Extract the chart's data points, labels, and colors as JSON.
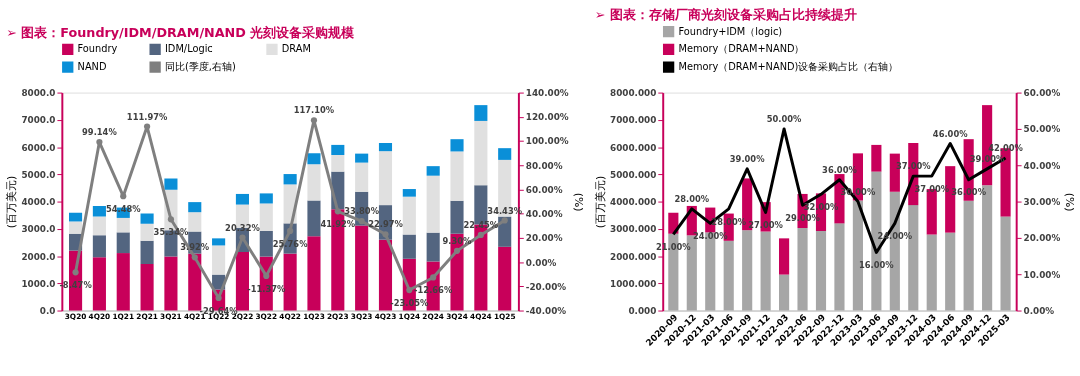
{
  "chart_data": [
    {
      "type": "bar",
      "title": "➢ 图表：Foundry/IDM/DRAM/NAND 光刻设备采购规模",
      "ylabel": "(百万美元)",
      "y2label": "(%)",
      "categories": [
        "3Q20",
        "4Q20",
        "1Q21",
        "2Q21",
        "3Q21",
        "4Q21",
        "1Q22",
        "2Q22",
        "3Q22",
        "4Q22",
        "1Q23",
        "2Q23",
        "3Q23",
        "4Q23",
        "1Q24",
        "2Q24",
        "3Q24",
        "4Q24",
        "1Q25"
      ],
      "stacked": true,
      "legend": "top",
      "grid": false,
      "ylim": [
        0,
        8000
      ],
      "yticks": [
        {
          "value": 0,
          "label": "0.0"
        },
        {
          "value": 1000,
          "label": "1000.0"
        },
        {
          "value": 2000,
          "label": "2000.0"
        },
        {
          "value": 3000,
          "label": "3000.0"
        },
        {
          "value": 4000,
          "label": "4000.0"
        },
        {
          "value": 5000,
          "label": "5000.0"
        },
        {
          "value": 6000,
          "label": "6000.0"
        },
        {
          "value": 7000,
          "label": "7000.0"
        },
        {
          "value": 8000,
          "label": "8000.0"
        }
      ],
      "y2lim": [
        -40,
        140
      ],
      "y2ticks": [
        {
          "value": -40,
          "label": "-40.00%"
        },
        {
          "value": -20,
          "label": "-20.00%"
        },
        {
          "value": 0,
          "label": "0.00%"
        },
        {
          "value": 20,
          "label": "20.00%"
        },
        {
          "value": 40,
          "label": "40.00%"
        },
        {
          "value": 60,
          "label": "60.00%"
        },
        {
          "value": 80,
          "label": "80.00%"
        },
        {
          "value": 100,
          "label": "100.00%"
        },
        {
          "value": 120,
          "label": "120.00%"
        },
        {
          "value": 140,
          "label": "140.00%"
        }
      ],
      "series": [
        {
          "name": "Foundry",
          "color": "#c8005a",
          "values": [
            2200,
            1960,
            2110,
            1710,
            1980,
            2090,
            770,
            2150,
            1980,
            2090,
            2730,
            3720,
            3120,
            2600,
            1900,
            1800,
            2820,
            3160,
            2340
          ]
        },
        {
          "name": "IDM/Logic",
          "color": "#536580",
          "values": [
            620,
            800,
            760,
            850,
            970,
            810,
            550,
            880,
            940,
            1110,
            1310,
            1380,
            1240,
            1270,
            890,
            1060,
            1210,
            1440,
            1110
          ]
        },
        {
          "name": "DRAM",
          "color": "#e0e0e0",
          "values": [
            450,
            690,
            530,
            630,
            1480,
            710,
            1070,
            860,
            1010,
            1430,
            1330,
            610,
            1070,
            1980,
            1390,
            2090,
            1810,
            2360,
            2080
          ]
        },
        {
          "name": "NAND",
          "color": "#0a8fd8",
          "values": [
            320,
            390,
            380,
            370,
            420,
            370,
            260,
            390,
            370,
            380,
            400,
            370,
            330,
            300,
            280,
            350,
            450,
            580,
            430
          ]
        },
        {
          "name": "同比(季度,右轴)",
          "type": "line",
          "axis": "y2",
          "color": "#7f7f7f",
          "marker": "circle",
          "line_style": "solid",
          "values": [
            -8.47,
            99.14,
            54.48,
            111.97,
            35.34,
            3.92,
            -29.64,
            20.32,
            -11.37,
            25.76,
            117.1,
            41.92,
            33.8,
            22.97,
            -23.05,
            -12.66,
            9.3,
            22.45,
            34.43
          ],
          "value_labels": [
            "-8.47%",
            "99.14%",
            "54.48%",
            "111.97%",
            "35.34%",
            "3.92%",
            "-29.64%",
            "20.32%",
            "-11.37%",
            "25.76%",
            "117.10%",
            "41.92%",
            "33.80%",
            "22.97%",
            "-23.05%",
            "-12.66%",
            "9.30%",
            "22.45%",
            "34.43%"
          ]
        }
      ]
    },
    {
      "type": "bar",
      "title": "➢ 图表：存储厂商光刻设备采购占比持续提升",
      "ylabel": "(百万美元)",
      "y2label": "(%)",
      "categories": [
        "2020-09",
        "2020-12",
        "2021-03",
        "2021-06",
        "2021-09",
        "2021-12",
        "2022-03",
        "2022-06",
        "2022-09",
        "2022-12",
        "2023-03",
        "2023-06",
        "2023-09",
        "2023-12",
        "2024-03",
        "2024-06",
        "2024-09",
        "2024-12",
        "2025-03"
      ],
      "stacked": true,
      "legend": "top",
      "grid": false,
      "ylim": [
        0,
        8000
      ],
      "yticks": [
        {
          "value": 0,
          "label": "0.000"
        },
        {
          "value": 1000,
          "label": "1000.000"
        },
        {
          "value": 2000,
          "label": "2000.000"
        },
        {
          "value": 3000,
          "label": "3000.000"
        },
        {
          "value": 4000,
          "label": "4000.000"
        },
        {
          "value": 5000,
          "label": "5000.000"
        },
        {
          "value": 6000,
          "label": "6000.000"
        },
        {
          "value": 7000,
          "label": "7000.000"
        },
        {
          "value": 8000,
          "label": "8000.000"
        }
      ],
      "y2lim": [
        0,
        60
      ],
      "y2ticks": [
        {
          "value": 0,
          "label": "0.00%"
        },
        {
          "value": 10,
          "label": "10.00%"
        },
        {
          "value": 20,
          "label": "20.00%"
        },
        {
          "value": 30,
          "label": "30.00%"
        },
        {
          "value": 40,
          "label": "40.00%"
        },
        {
          "value": 50,
          "label": "50.00%"
        },
        {
          "value": 60,
          "label": "60.00%"
        }
      ],
      "series": [
        {
          "name": "Foundry+IDM（logic)",
          "color": "#a6a6a6",
          "values": [
            2820,
            2760,
            2870,
            2560,
            2950,
            2900,
            1320,
            3030,
            2920,
            3200,
            4040,
            5100,
            4360,
            3870,
            2790,
            2860,
            4030,
            4600,
            3450
          ]
        },
        {
          "name": "Memory（DRAM+NAND）",
          "color": "#c8005a",
          "values": [
            770,
            1080,
            910,
            1000,
            1900,
            1080,
            1330,
            1250,
            1380,
            1810,
            1730,
            980,
            1400,
            2280,
            1670,
            2440,
            2260,
            2940,
            2510
          ]
        },
        {
          "name": "Memory（DRAM+NAND)设备采购占比（右轴）",
          "type": "line",
          "axis": "y2",
          "color": "#000000",
          "marker": "none",
          "line_style": "solid",
          "values": [
            21,
            28,
            24,
            28,
            39,
            27,
            50,
            29,
            32,
            36,
            30,
            16,
            24,
            37,
            37,
            46,
            36,
            39,
            42
          ],
          "value_labels": [
            "21.00%",
            "28.00%",
            "24.00%",
            "28.00%",
            "39.00%",
            "27.00%",
            "50.00%",
            "29.00%",
            "32.00%",
            "36.00%",
            "30.00%",
            "16.00%",
            "24.00%",
            "37.00%",
            "37.00%",
            "46.00%",
            "36.00%",
            "39.00%",
            "42.00%"
          ]
        }
      ]
    }
  ]
}
